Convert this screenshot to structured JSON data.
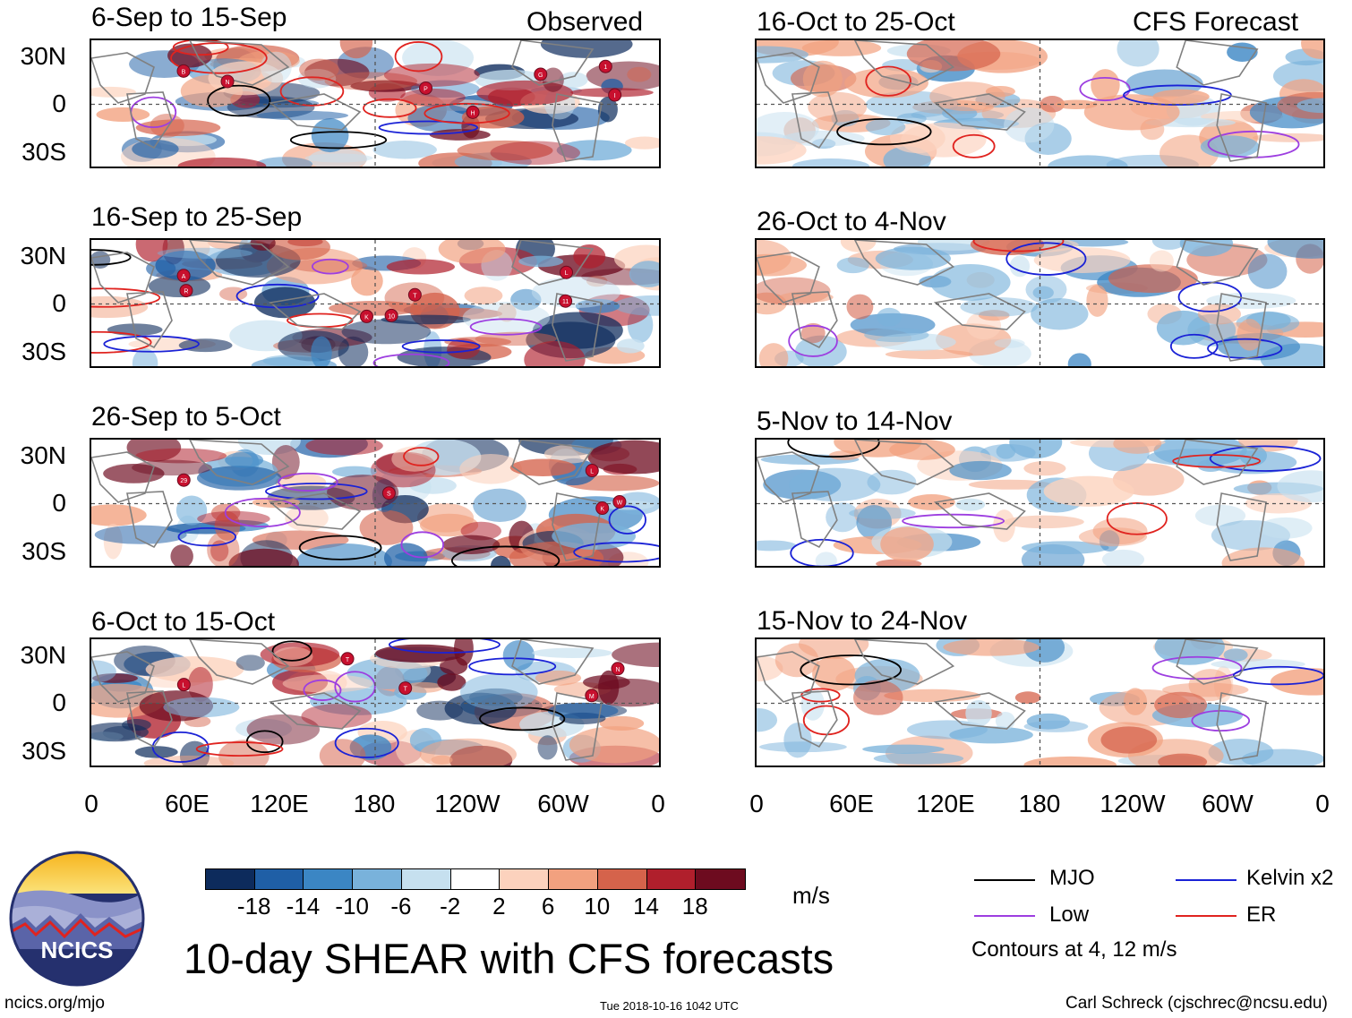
{
  "chart_data": {
    "type": "heatmap",
    "title": "10-day SHEAR with CFS forecasts",
    "units": "m/s",
    "observed_label": "Observed",
    "forecast_label": "CFS Forecast",
    "lat_ticks": [
      "30N",
      "0",
      "30S"
    ],
    "lon_ticks": [
      "0",
      "60E",
      "120E",
      "180",
      "120W",
      "60W",
      "0"
    ],
    "panels_left": [
      {
        "title": "6-Sep to 15-Sep",
        "storms": [
          "B",
          "N",
          "1",
          "P",
          "G",
          "I",
          "H"
        ]
      },
      {
        "title": "16-Sep to 25-Sep",
        "storms": [
          "A",
          "T",
          "10",
          "R",
          "L",
          "11",
          "K"
        ]
      },
      {
        "title": "26-Sep to 5-Oct",
        "storms": [
          "29",
          "K",
          "W",
          "S",
          "L"
        ]
      },
      {
        "title": "6-Oct to 15-Oct",
        "storms": [
          "L",
          "T",
          "T",
          "M",
          "N"
        ]
      }
    ],
    "panels_right": [
      {
        "title": "16-Oct to 25-Oct"
      },
      {
        "title": "26-Oct to 4-Nov"
      },
      {
        "title": "5-Nov to 14-Nov"
      },
      {
        "title": "15-Nov to 24-Nov"
      }
    ],
    "colorbar": {
      "ticks": [
        "-18",
        "-14",
        "-10",
        "-6",
        "-2",
        "2",
        "6",
        "10",
        "14",
        "18"
      ],
      "colors": [
        "#0d2b5c",
        "#1f5fa6",
        "#3b86c4",
        "#79b2db",
        "#c6e0ef",
        "#ffffff",
        "#fcd2bd",
        "#f2a17f",
        "#d5634b",
        "#b01f2c",
        "#6d0b1f"
      ]
    },
    "legend": [
      {
        "label": "MJO",
        "color": "#000000"
      },
      {
        "label": "Kelvin x2",
        "color": "#1a22d6"
      },
      {
        "label": "Low",
        "color": "#9d3ee0"
      },
      {
        "label": "ER",
        "color": "#e0231f"
      }
    ],
    "contour_note": "Contours at 4, 12 m/s"
  },
  "footer": {
    "org": "NCICS",
    "url": "ncics.org/mjo",
    "timestamp": "Tue 2018-10-16 1042 UTC",
    "author": "Carl Schreck (cjschrec@ncsu.edu)"
  }
}
